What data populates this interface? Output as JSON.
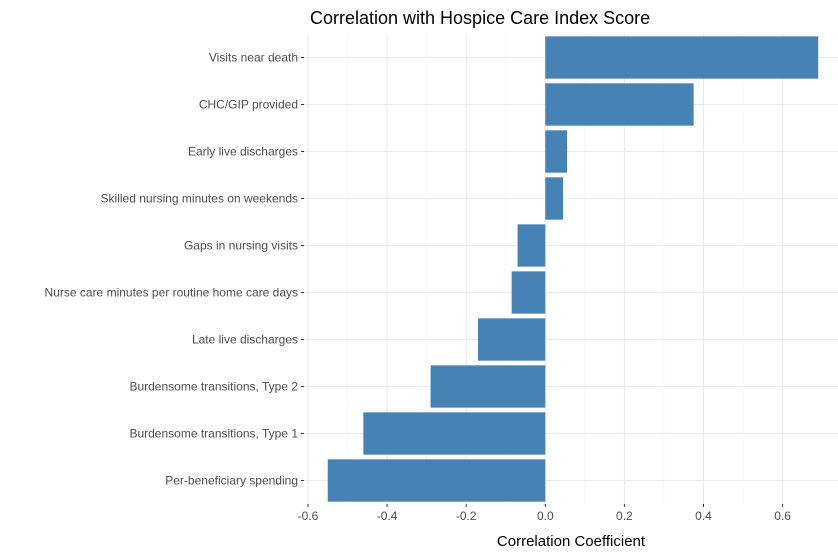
{
  "chart_data": {
    "type": "bar",
    "orientation": "horizontal",
    "title": "Correlation with Hospice Care Index Score",
    "xlabel": "Correlation Coefficient",
    "ylabel": "",
    "xlim": [
      -0.61,
      0.74
    ],
    "x_ticks": [
      -0.6,
      -0.4,
      -0.2,
      0.0,
      0.2,
      0.4,
      0.6
    ],
    "x_tick_labels": [
      "-0.6",
      "-0.4",
      "-0.2",
      "0.0",
      "0.2",
      "0.4",
      "0.6"
    ],
    "grid": true,
    "bar_color": "#4682b4",
    "categories": [
      "Visits near death",
      "CHC/GIP provided",
      "Early live discharges",
      "Skilled nursing minutes on weekends",
      "Gaps in nursing visits",
      "Nurse care minutes per routine home care days",
      "Late live discharges",
      "Burdensome transitions, Type 2",
      "Burdensome transitions, Type 1",
      "Per-beneficiary spending"
    ],
    "values": [
      0.69,
      0.375,
      0.055,
      0.045,
      -0.07,
      -0.085,
      -0.17,
      -0.29,
      -0.46,
      -0.55
    ]
  }
}
